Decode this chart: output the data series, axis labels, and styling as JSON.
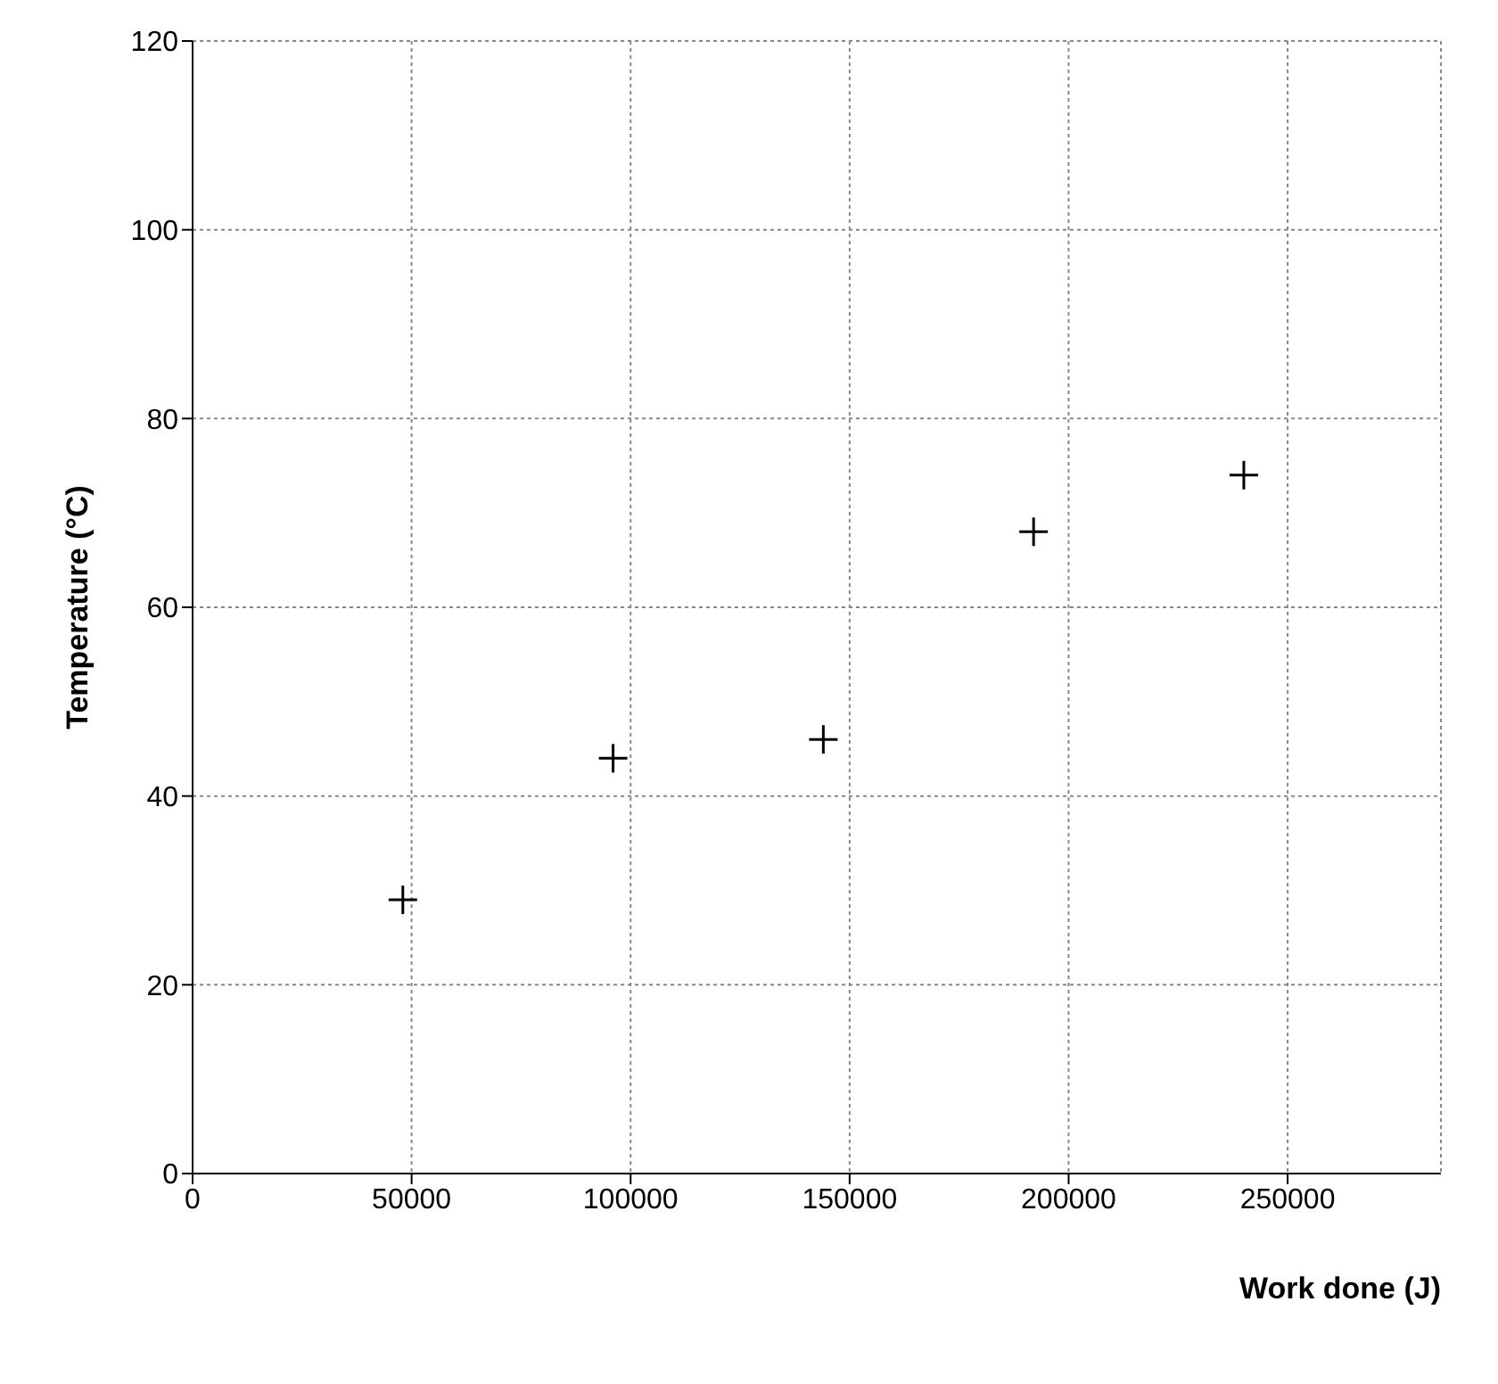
{
  "chart_data": {
    "type": "scatter",
    "xlabel": "Work done (J)",
    "ylabel": "Temperature (°C)",
    "x": [
      48000,
      96000,
      144000,
      192000,
      240000
    ],
    "values": [
      29,
      44,
      46,
      68,
      74
    ],
    "color": "#000000",
    "marker": "cross",
    "grid": true,
    "legend": false,
    "xlim": [
      0,
      285000
    ],
    "xticks": [
      0,
      50000,
      100000,
      150000,
      200000,
      250000
    ],
    "ylim": [
      0,
      120
    ],
    "yticks": [
      0,
      20,
      40,
      60,
      80,
      100,
      120
    ]
  }
}
